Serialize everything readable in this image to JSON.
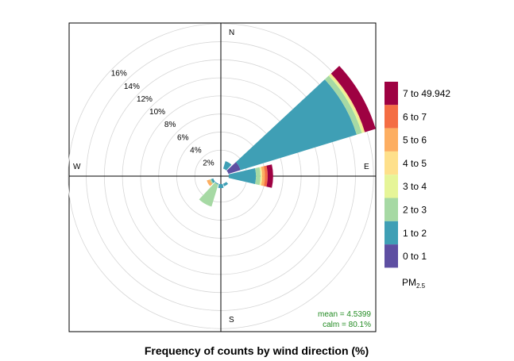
{
  "chart_data": {
    "type": "polar-bar",
    "title": "Frequency of counts by wind direction (%)",
    "directions": [
      "N",
      "NNE",
      "ENE",
      "E",
      "ESE",
      "SSE",
      "S",
      "SSW",
      "WSW",
      "W",
      "WNW",
      "NNW"
    ],
    "direction_labels": {
      "N": "N",
      "E": "E",
      "S": "S",
      "W": "W"
    },
    "angles_deg": [
      0,
      30,
      60,
      90,
      120,
      150,
      180,
      210,
      240,
      270,
      300,
      330
    ],
    "intervals": [
      "0 to 1",
      "1 to 2",
      "2 to 3",
      "3 to 4",
      "4 to 5",
      "5 to 6",
      "6 to 7",
      "7 to 49.942"
    ],
    "colors": [
      "#5E4FA2",
      "#3F9FB5",
      "#A6D9A4",
      "#E6F598",
      "#FEE08B",
      "#FDAE61",
      "#F46D43",
      "#9E0142"
    ],
    "series": [
      {
        "name": "0 to 1",
        "values": [
          0.0,
          0.0,
          1.4,
          0.0,
          0.0,
          0.0,
          0.0,
          0.0,
          0.0,
          0.0,
          0.0,
          0.0
        ]
      },
      {
        "name": "1 to 2",
        "values": [
          0.0,
          0.85,
          13.42,
          3.0,
          0.0,
          0.3,
          0.45,
          0.1,
          0.25,
          0.0,
          0.0,
          0.0
        ]
      },
      {
        "name": "2 to 3",
        "values": [
          0.0,
          0.0,
          0.6,
          0.5,
          0.0,
          0.0,
          0.0,
          2.55,
          0.15,
          0.0,
          0.0,
          0.0
        ]
      },
      {
        "name": "3 to 4",
        "values": [
          0.0,
          0.0,
          0.2,
          0.1,
          0.0,
          0.0,
          0.0,
          0.0,
          0.0,
          0.0,
          0.0,
          0.0
        ]
      },
      {
        "name": "4 to 5",
        "values": [
          0.0,
          0.0,
          0.15,
          0.1,
          0.0,
          0.0,
          0.0,
          0.0,
          0.0,
          0.0,
          0.0,
          0.0
        ]
      },
      {
        "name": "5 to 6",
        "values": [
          0.0,
          0.0,
          0.0,
          0.3,
          0.0,
          0.0,
          0.0,
          0.0,
          0.35,
          0.0,
          0.0,
          0.0
        ]
      },
      {
        "name": "6 to 7",
        "values": [
          0.0,
          0.0,
          0.0,
          0.3,
          0.0,
          0.0,
          0.0,
          0.0,
          0.0,
          0.0,
          0.0,
          0.0
        ]
      },
      {
        "name": "7 to 49.942",
        "values": [
          0.0,
          0.0,
          1.25,
          0.6,
          0.0,
          0.0,
          0.0,
          0.0,
          0.0,
          0.0,
          0.0,
          0.0
        ]
      }
    ],
    "rings": [
      2,
      4,
      6,
      8,
      10,
      12,
      14,
      16
    ],
    "ring_labels": [
      "2%",
      "4%",
      "6%",
      "8%",
      "10%",
      "12%",
      "14%",
      "16%"
    ],
    "r_max": 18,
    "stats": {
      "mean": "mean = 4.5399",
      "calm": "calm = 80.1%"
    },
    "legend_title": "PM",
    "legend_title_sub": "2.5",
    "legend_placement": "right"
  }
}
